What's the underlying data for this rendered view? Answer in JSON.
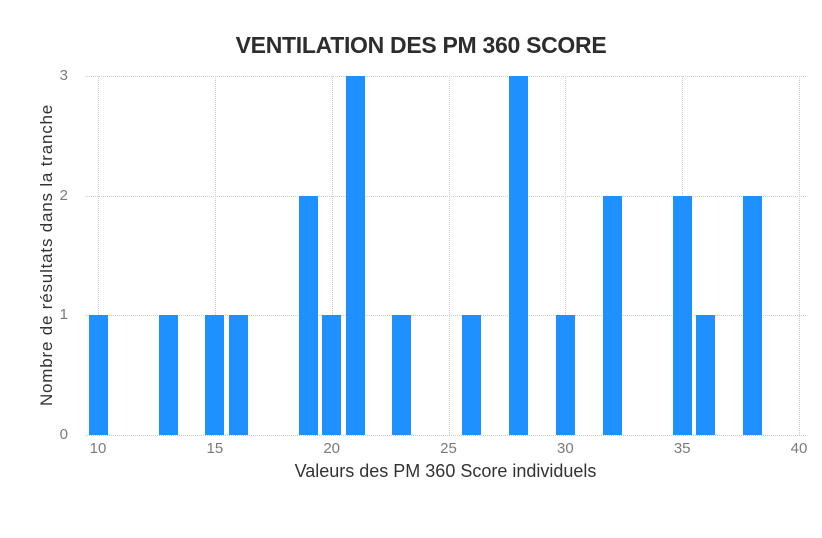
{
  "page": {
    "background": "#ffffff"
  },
  "chart_data": {
    "type": "bar",
    "title": "VENTILATION DES PM 360 SCORE",
    "xlabel": "Valeurs des PM 360 Score individuels",
    "ylabel": "Nombre de résultats dans la tranche",
    "x": [
      10,
      13,
      15,
      16,
      19,
      20,
      21,
      23,
      26,
      28,
      30,
      32,
      35,
      36,
      38
    ],
    "values": [
      1,
      1,
      1,
      1,
      2,
      1,
      3,
      1,
      1,
      3,
      1,
      2,
      2,
      1,
      2
    ],
    "xlim": [
      10,
      40
    ],
    "ylim": [
      0,
      3
    ],
    "x_ticks": [
      10,
      15,
      20,
      25,
      30,
      35,
      40
    ],
    "y_ticks": [
      0,
      1,
      2,
      3
    ],
    "grid": "dotted",
    "legend": "none",
    "bar_color": "#1E90FF",
    "gridline_color": "#cccccc",
    "tick_label_color": "#7a7a7a",
    "axis_label_color": "#333333",
    "title_color": "#2d2d2d"
  }
}
